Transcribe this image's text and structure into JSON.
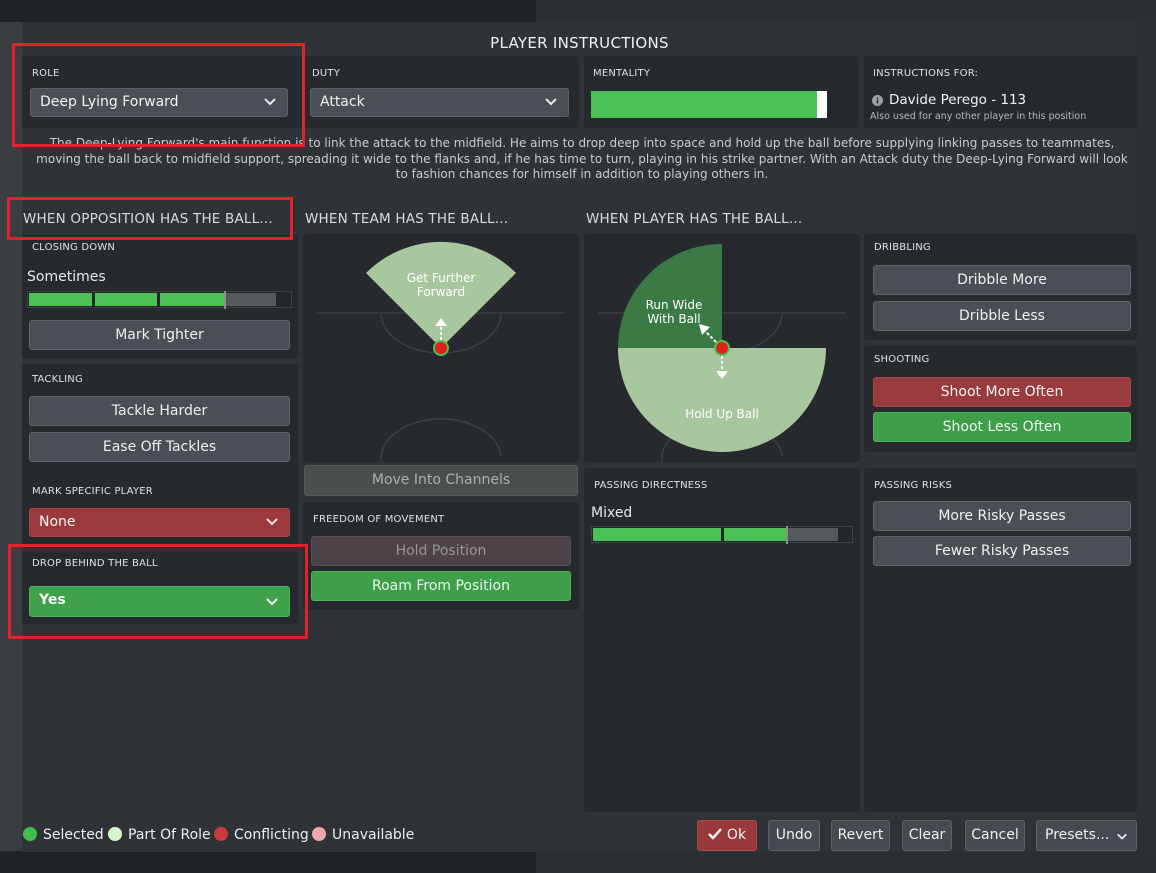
{
  "title": "PLAYER INSTRUCTIONS",
  "role": {
    "label": "ROLE",
    "value": "Deep Lying Forward"
  },
  "duty": {
    "label": "DUTY",
    "value": "Attack"
  },
  "mentality": {
    "label": "MENTALITY",
    "level": 0.95
  },
  "instructions_for": {
    "label": "INSTRUCTIONS FOR:",
    "player": "Davide Perego - 113",
    "note": "Also used for any other player in this position"
  },
  "description": "The Deep-Lying Forward's main function is to link the attack to the midfield. He aims to drop deep into space and hold up the ball before supplying linking passes to teammates, moving the ball back to midfield support, spreading it wide to the flanks and, if he has time to turn, playing in his strike partner. With an Attack duty the Deep-Lying Forward will look to fashion chances for himself in addition to playing others in.",
  "sections": {
    "opposition": "WHEN OPPOSITION HAS THE BALL...",
    "team": "WHEN TEAM HAS THE BALL...",
    "player": "WHEN PLAYER HAS THE BALL..."
  },
  "closing_down": {
    "label": "CLOSING DOWN",
    "value": "Sometimes",
    "level": 0.75,
    "button": "Mark Tighter"
  },
  "tackling": {
    "label": "TACKLING",
    "buttons": [
      "Tackle Harder",
      "Ease Off Tackles"
    ]
  },
  "mark_specific": {
    "label": "MARK SPECIFIC PLAYER",
    "value": "None"
  },
  "drop_behind": {
    "label": "DROP BEHIND THE BALL",
    "value": "Yes"
  },
  "team_pitch": {
    "zone_label_1": "Get Further",
    "zone_label_2": "Forward"
  },
  "move_channels": "Move Into Channels",
  "freedom": {
    "label": "FREEDOM OF MOVEMENT",
    "buttons": [
      "Hold Position",
      "Roam From Position"
    ]
  },
  "player_pitch": {
    "wide_label_1": "Run Wide",
    "wide_label_2": "With Ball",
    "hold_label": "Hold Up Ball"
  },
  "passing_directness": {
    "label": "PASSING DIRECTNESS",
    "value": "Mixed",
    "level": 0.75
  },
  "dribbling": {
    "label": "DRIBBLING",
    "buttons": [
      "Dribble More",
      "Dribble Less"
    ]
  },
  "shooting": {
    "label": "SHOOTING",
    "buttons": [
      "Shoot More Often",
      "Shoot Less Often"
    ]
  },
  "passing_risks": {
    "label": "PASSING RISKS",
    "buttons": [
      "More Risky Passes",
      "Fewer Risky Passes"
    ]
  },
  "legend": [
    {
      "label": "Selected",
      "color": "#3fbf4d"
    },
    {
      "label": "Part Of Role",
      "color": "#d6f5c8"
    },
    {
      "label": "Conflicting",
      "color": "#c9393e"
    },
    {
      "label": "Unavailable",
      "color": "#f0a7ab"
    }
  ],
  "footer": {
    "ok": "Ok",
    "undo": "Undo",
    "revert": "Revert",
    "clear": "Clear",
    "cancel": "Cancel",
    "presets": "Presets..."
  },
  "colors": {
    "accent_green": "#4bc054",
    "conflict_red": "#9b3a3d",
    "highlight_box": "#e3212b"
  }
}
